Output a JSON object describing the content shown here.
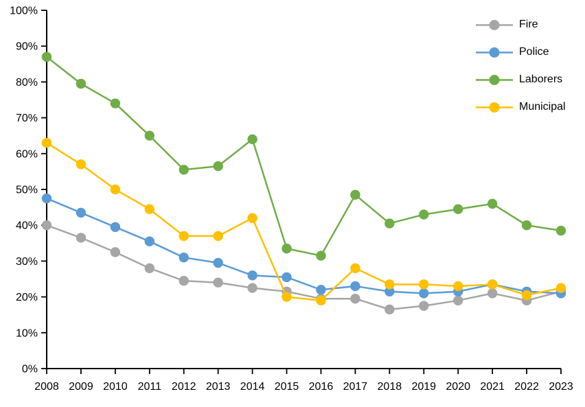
{
  "chart_data": {
    "type": "line",
    "title": "",
    "xlabel": "",
    "ylabel": "",
    "x": [
      "2008",
      "2009",
      "2010",
      "2011",
      "2012",
      "2013",
      "2014",
      "2015",
      "2016",
      "2017",
      "2018",
      "2019",
      "2020",
      "2021",
      "2022",
      "2023"
    ],
    "ylim": [
      0,
      100
    ],
    "y_ticks": [
      "0%",
      "10%",
      "20%",
      "30%",
      "40%",
      "50%",
      "60%",
      "70%",
      "80%",
      "90%",
      "100%"
    ],
    "grid": false,
    "legend_position": "top-right",
    "axis_color": "#000000",
    "background_color": "#FFFFFF",
    "series": [
      {
        "name": "Fire",
        "color": "#A6A6A6",
        "values": [
          40,
          36.5,
          32.5,
          28,
          24.5,
          24,
          22.5,
          21.5,
          19.5,
          19.5,
          16.5,
          17.5,
          19,
          21,
          19,
          21.5
        ]
      },
      {
        "name": "Police",
        "color": "#5B9BD5",
        "values": [
          47.5,
          43.5,
          39.5,
          35.5,
          31,
          29.5,
          26,
          25.5,
          22,
          23,
          21.5,
          21,
          21.5,
          23.5,
          21.5,
          21
        ]
      },
      {
        "name": "Laborers",
        "color": "#70AD47",
        "values": [
          87,
          79.5,
          74,
          65,
          55.5,
          56.5,
          64,
          33.5,
          31.5,
          48.5,
          40.5,
          43,
          44.5,
          46,
          40,
          38.5
        ]
      },
      {
        "name": "Municipal",
        "color": "#FFC000",
        "values": [
          63,
          57,
          50,
          44.5,
          37,
          37,
          42,
          20,
          19,
          28,
          23.5,
          23.5,
          23,
          23.5,
          20.5,
          22.5
        ]
      }
    ]
  }
}
